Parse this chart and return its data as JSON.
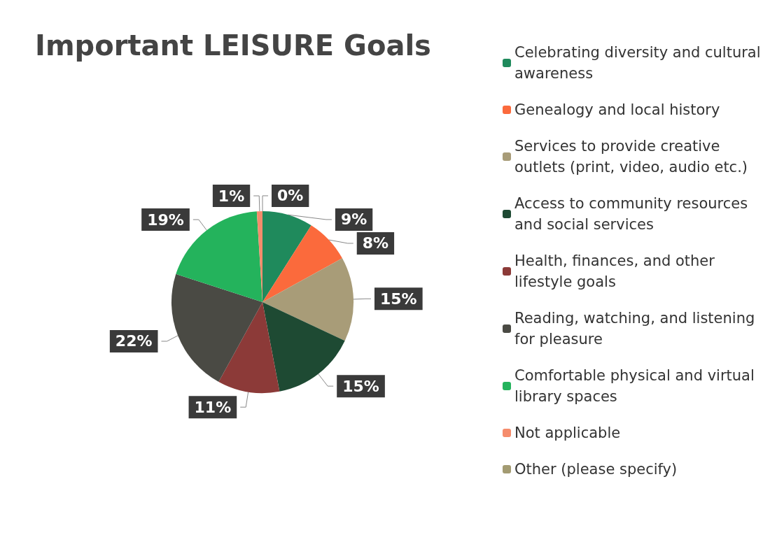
{
  "chart_data": {
    "type": "pie",
    "title": "Important LEISURE Goals",
    "categories": [
      "Celebrating diversity and cultural awareness",
      "Genealogy and local history",
      "Services to provide creative outlets (print, video, audio etc.)",
      "Access to community resources and social services",
      "Health, finances, and other lifestyle goals",
      "Reading, watching, and listening for pleasure",
      "Comfortable physical and virtual library spaces",
      "Not applicable",
      "Other (please specify)"
    ],
    "values": [
      9,
      8,
      15,
      15,
      11,
      22,
      19,
      1,
      0
    ],
    "value_labels": [
      "9%",
      "8%",
      "15%",
      "15%",
      "11%",
      "22%",
      "19%",
      "1%",
      "0%"
    ],
    "colors": [
      "#1f8a5c",
      "#fb6a3c",
      "#a89c78",
      "#1e4a33",
      "#8c3a38",
      "#4a4a44",
      "#24b35c",
      "#f58c6c",
      "#a39b72"
    ],
    "legend": "right"
  }
}
